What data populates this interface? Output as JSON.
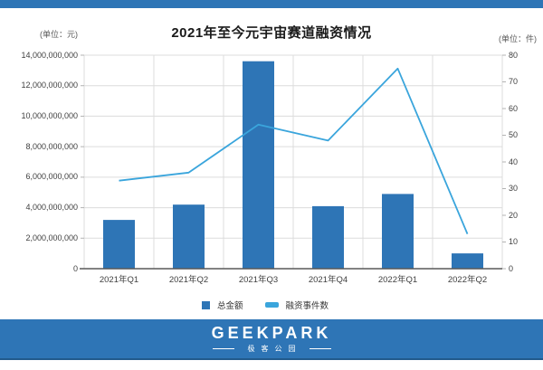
{
  "page": {
    "top_band_color": "#2e75b6",
    "background_color": "#ffffff"
  },
  "chart": {
    "title": "2021年至今元宇宙赛道融资情况",
    "left_axis_unit": "(单位：元)",
    "right_axis_unit": "(单位：件)"
  },
  "chart_data": {
    "type": "combo-bar-line",
    "title": "2021年至今元宇宙赛道融资情况",
    "categories": [
      "2021年Q1",
      "2021年Q2",
      "2021年Q3",
      "2021年Q4",
      "2022年Q1",
      "2022年Q2"
    ],
    "series": [
      {
        "name": "总金额",
        "chart_type": "bar",
        "axis": "left",
        "color": "#2e75b6",
        "values": [
          3200000000,
          4200000000,
          13600000000,
          4100000000,
          4900000000,
          1000000000
        ]
      },
      {
        "name": "融资事件数",
        "chart_type": "line",
        "axis": "right",
        "color": "#3aa5dc",
        "values": [
          33,
          36,
          54,
          48,
          75,
          13
        ]
      }
    ],
    "left_axis": {
      "unit": "(单位：元)",
      "min": 0,
      "max": 14000000000,
      "tick_step": 2000000000,
      "tick_labels": [
        "14,000,000,000",
        "12,000,000,000",
        "10,000,000,000",
        "8,000,000,000",
        "6,000,000,000",
        "4,000,000,000",
        "2,000,000,000",
        "0"
      ]
    },
    "right_axis": {
      "unit": "(单位：件)",
      "min": 0,
      "max": 80,
      "tick_step": 10,
      "tick_labels": [
        "80",
        "70",
        "60",
        "50",
        "40",
        "30",
        "20",
        "10",
        "0"
      ]
    },
    "grid": true,
    "gridline_color": "#dcdcdc",
    "axis_line_color": "#595959",
    "legend_position": "bottom"
  },
  "legend": {
    "items": [
      {
        "label": "总金额",
        "color": "#2e75b6",
        "swatch": "square"
      },
      {
        "label": "融资事件数",
        "color": "#3aa5dc",
        "swatch": "line"
      }
    ]
  },
  "footer": {
    "brand": "GEEKPARK",
    "brand_cn": "极客公园",
    "bg_color": "#2e75b6"
  }
}
